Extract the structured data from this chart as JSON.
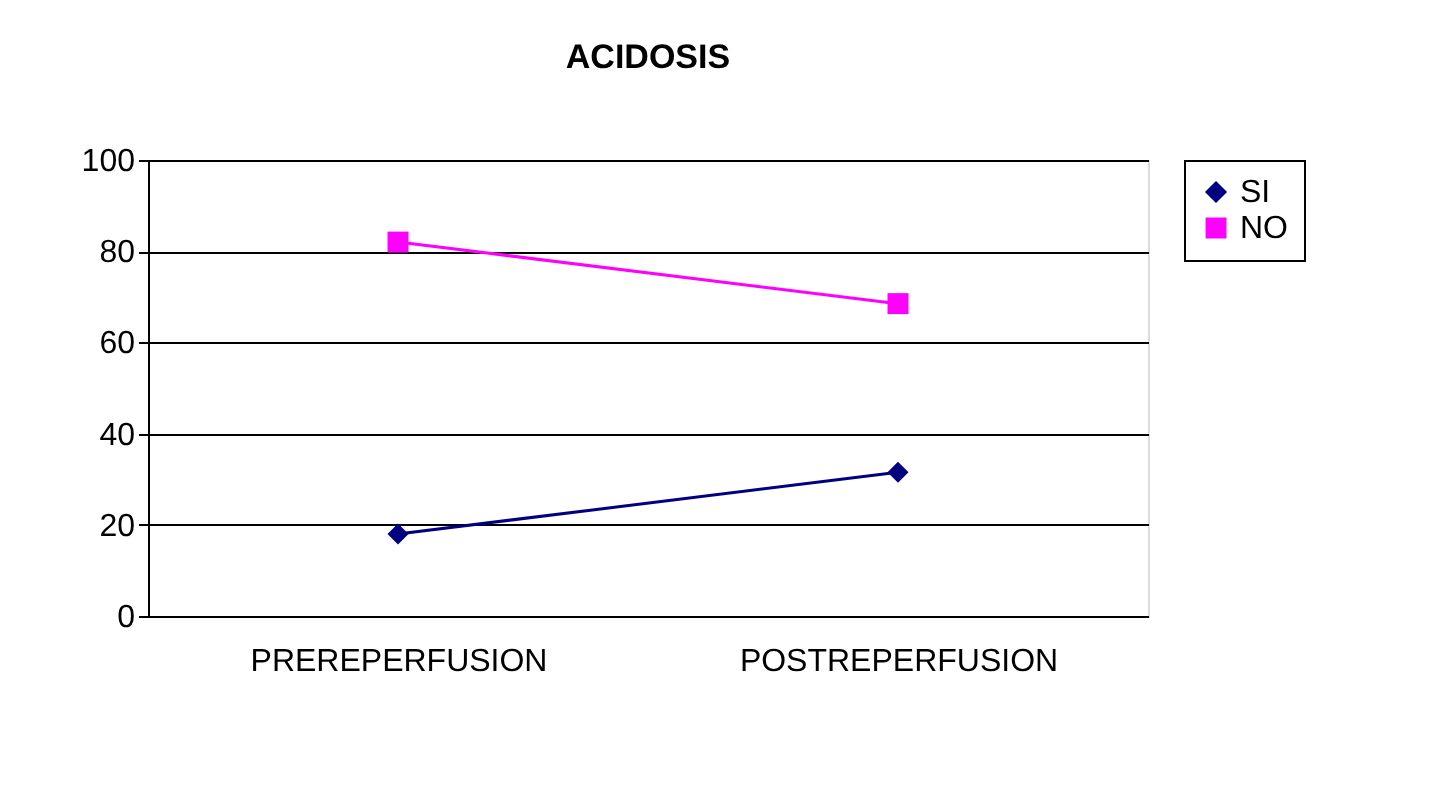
{
  "chart_data": {
    "type": "line",
    "title": "ACIDOSIS",
    "categories": [
      "PREREPERFUSION",
      "POSTREPERFUSION"
    ],
    "series": [
      {
        "name": "SI",
        "color": "#000080",
        "marker": "diamond",
        "values": [
          18,
          31.5
        ]
      },
      {
        "name": "NO",
        "color": "#ff00ff",
        "marker": "square",
        "values": [
          82,
          68.5
        ]
      }
    ],
    "ylim": [
      0,
      100
    ],
    "yticks": [
      0,
      20,
      40,
      60,
      80,
      100
    ],
    "grid": "y",
    "legend": "right"
  }
}
